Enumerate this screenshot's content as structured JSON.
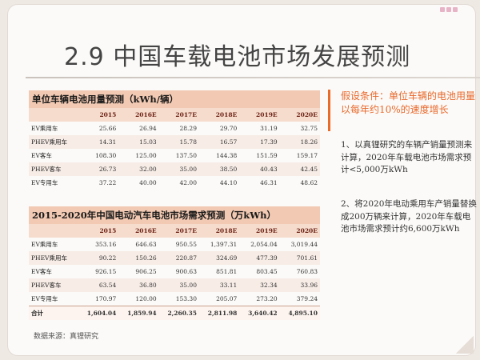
{
  "title": "2.9 中国车载电池市场发展预测",
  "table1": {
    "title": "单位车辆电池用量预测（kWh/辆）",
    "headers": [
      "",
      "2015",
      "2016E",
      "2017E",
      "2018E",
      "2019E",
      "2020E"
    ],
    "rows": [
      [
        "EV乘用车",
        "25.66",
        "26.94",
        "28.29",
        "29.70",
        "31.19",
        "32.75"
      ],
      [
        "PHEV乘用车",
        "14.31",
        "15.03",
        "15.78",
        "16.57",
        "17.39",
        "18.26"
      ],
      [
        "EV客车",
        "108.30",
        "125.00",
        "137.50",
        "144.38",
        "151.59",
        "159.17"
      ],
      [
        "PHEV客车",
        "26.73",
        "32.00",
        "35.00",
        "38.50",
        "40.43",
        "42.45"
      ],
      [
        "EV专用车",
        "37.22",
        "40.00",
        "42.00",
        "44.10",
        "46.31",
        "48.62"
      ]
    ]
  },
  "table2": {
    "title": "2015-2020年中国电动汽车电池市场需求预测（万kWh）",
    "headers": [
      "",
      "2015",
      "2016E",
      "2017E",
      "2018E",
      "2019E",
      "2020E"
    ],
    "rows": [
      [
        "EV乘用车",
        "353.16",
        "646.63",
        "950.55",
        "1,397.31",
        "2,054.04",
        "3,019.44"
      ],
      [
        "PHEV乘用车",
        "90.22",
        "150.26",
        "220.87",
        "324.69",
        "477.39",
        "701.61"
      ],
      [
        "EV客车",
        "926.15",
        "906.25",
        "900.63",
        "851.81",
        "803.45",
        "760.83"
      ],
      [
        "PHEV客车",
        "63.54",
        "36.80",
        "35.00",
        "33.11",
        "32.34",
        "33.96"
      ],
      [
        "EV专用车",
        "170.97",
        "120.00",
        "153.30",
        "205.07",
        "273.20",
        "379.24"
      ],
      [
        "合计",
        "1,604.04",
        "1,859.94",
        "2,260.35",
        "2,811.98",
        "3,640.42",
        "4,895.10"
      ]
    ]
  },
  "source": "数据来源：真锂研究",
  "assumption": "假设条件：单位车辆的电池用量以每年约10%的速度增长",
  "notes": [
    "1、以真锂研究的车辆产销量预测来计算，2020年车载电池市场需求预计<5,000万kWh",
    "2、将2020年电动乘用车产销量替换成200万辆来计算，2020年车载电池市场需求预计约6,600万kWh"
  ],
  "colors": {
    "accent": "#e9682a",
    "table_title_bg": "#f2c9b2",
    "header_text": "#6b1f12"
  }
}
